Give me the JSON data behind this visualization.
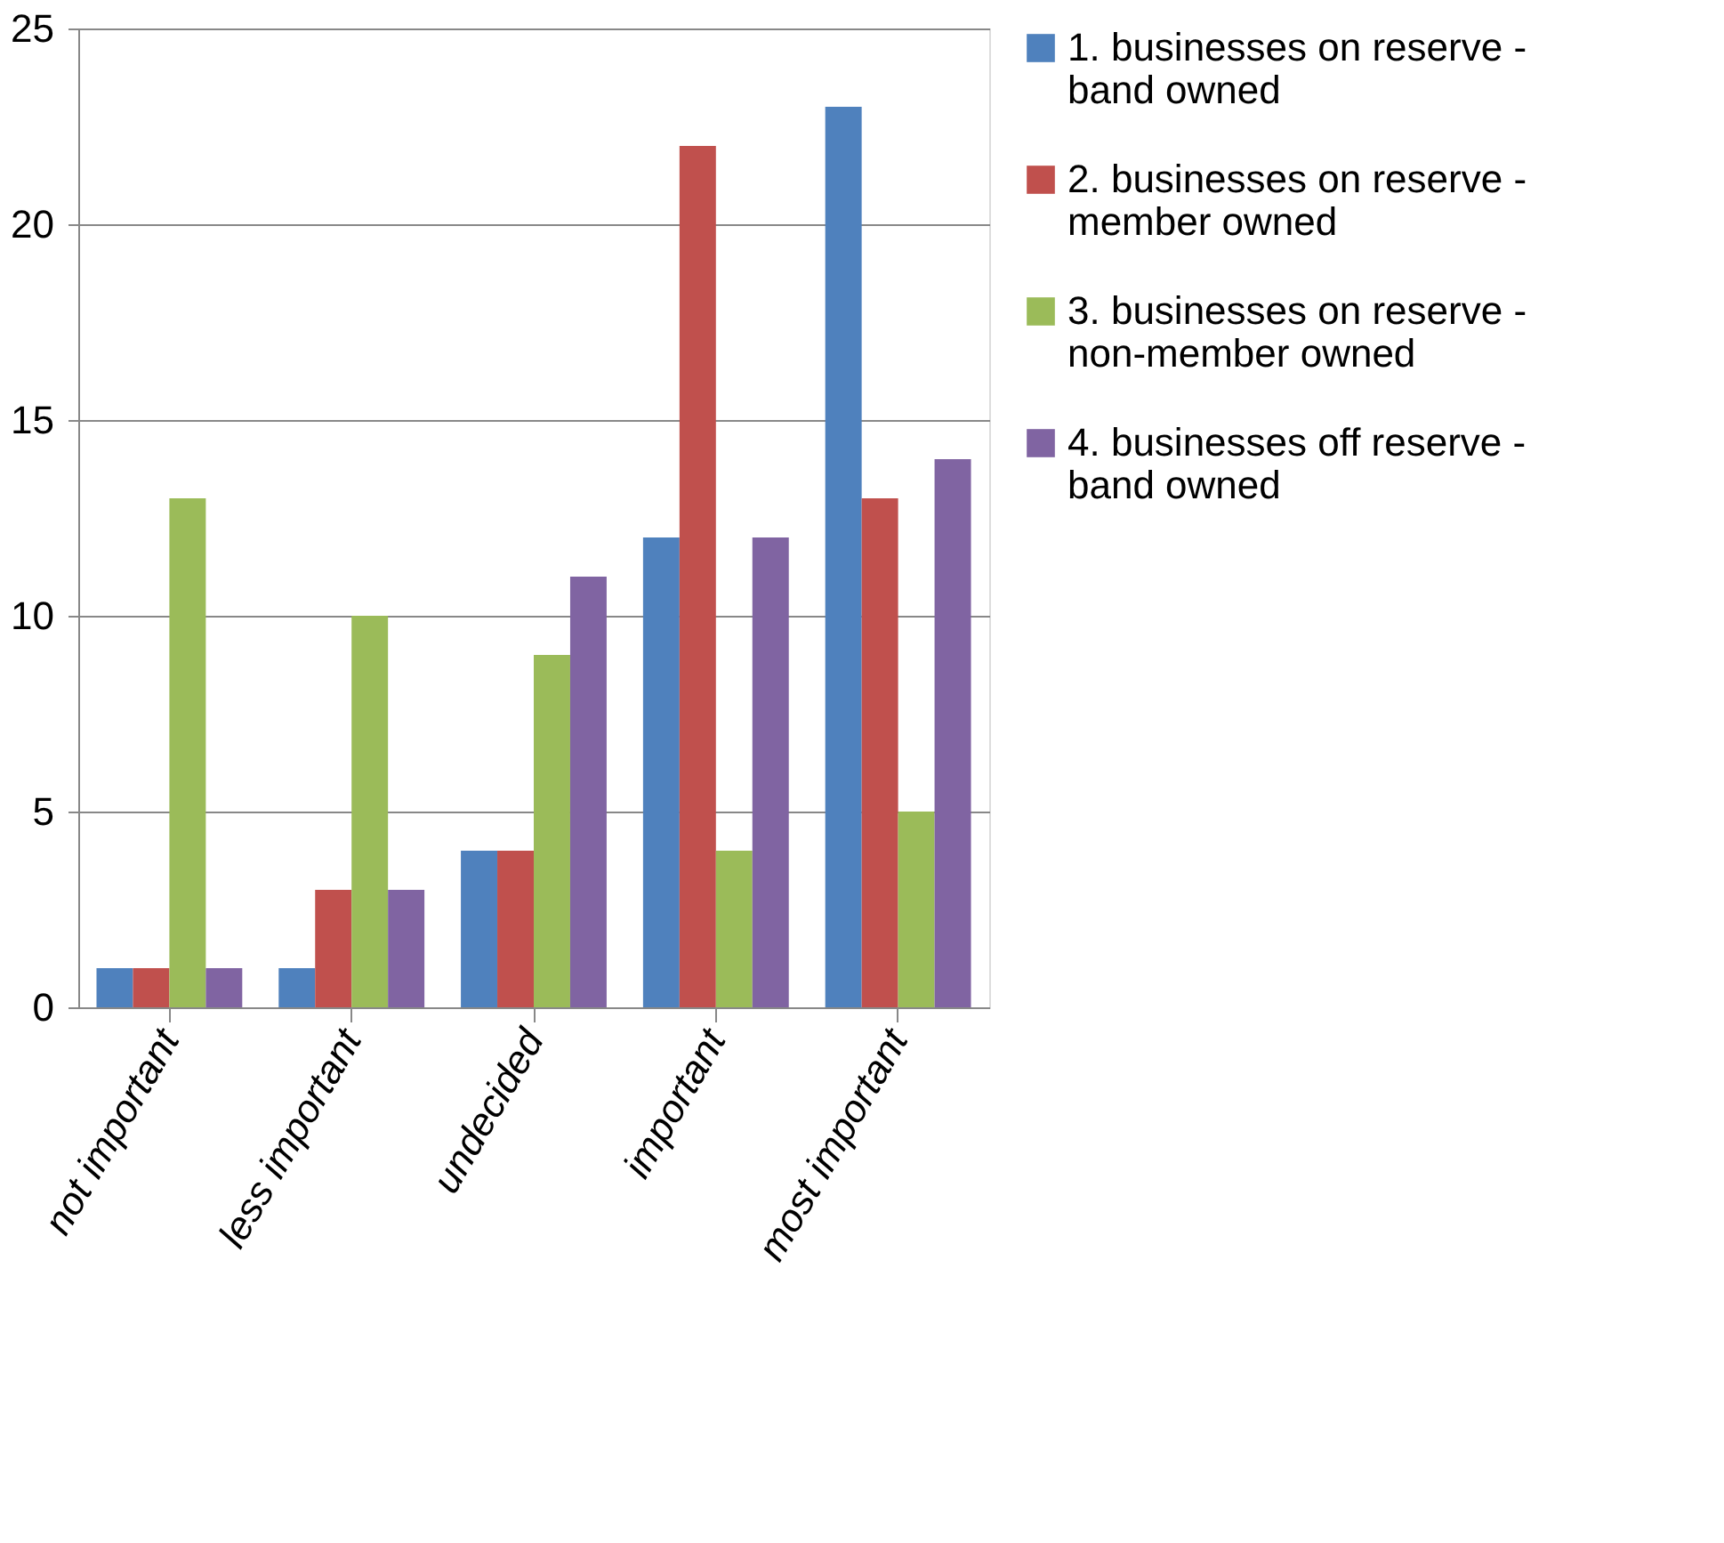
{
  "chart_data": {
    "type": "bar",
    "categories": [
      "not important",
      "less important",
      "undecided",
      "important",
      "most important"
    ],
    "series": [
      {
        "name": "1. businesses on reserve - band owned",
        "color": "#4f81bd",
        "values": [
          1,
          1,
          4,
          12,
          23
        ]
      },
      {
        "name": "2. businesses on reserve - member owned",
        "color": "#c0504d",
        "values": [
          1,
          3,
          4,
          22,
          13
        ]
      },
      {
        "name": "3. businesses on reserve - non-member owned",
        "color": "#9bbb59",
        "values": [
          13,
          10,
          9,
          4,
          5
        ]
      },
      {
        "name": "4. businesses off reserve - band owned",
        "color": "#8064a2",
        "values": [
          1,
          3,
          11,
          12,
          14
        ]
      }
    ],
    "ylim": [
      0,
      25
    ],
    "yticks": [
      0,
      5,
      10,
      15,
      20,
      25
    ],
    "grid": "y",
    "legend": "right"
  }
}
